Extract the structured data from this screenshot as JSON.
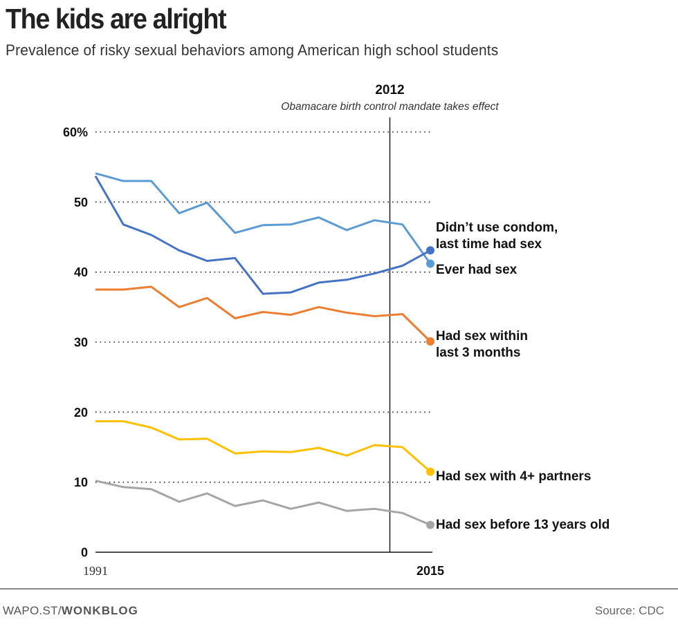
{
  "header": {
    "title": "The kids are alright",
    "subtitle": "Prevalence of risky sexual behaviors among American high school students"
  },
  "footer": {
    "credit_prefix": "WAPO.ST/",
    "credit_bold": "WONKBLOG",
    "source": "Source: CDC"
  },
  "chart_data": {
    "type": "line",
    "title": "The kids are alright",
    "subtitle": "Prevalence of risky sexual behaviors among American high school students",
    "xlabel": "",
    "ylabel": "",
    "x": [
      1991,
      1993,
      1995,
      1997,
      1999,
      2001,
      2003,
      2005,
      2007,
      2009,
      2011,
      2013,
      2015
    ],
    "x_tick_labels": [
      "1991",
      "2015"
    ],
    "xlim": [
      1991,
      2015
    ],
    "ylim": [
      0,
      60
    ],
    "y_ticks": [
      0,
      10,
      20,
      30,
      40,
      50,
      60
    ],
    "y_tick_labels": [
      "0",
      "10",
      "20",
      "30",
      "40",
      "50",
      "60%"
    ],
    "grid": "horizontal dotted",
    "legend": "direct labels at right end of lines",
    "annotation": {
      "x": 2012,
      "label": "2012",
      "text": "Obamacare birth control mandate takes effect"
    },
    "series": [
      {
        "name": "Ever had sex",
        "color": "#5b9bd5",
        "values": [
          54.1,
          53.0,
          53.0,
          48.4,
          49.9,
          45.6,
          46.7,
          46.8,
          47.8,
          46.0,
          47.4,
          46.8,
          41.2
        ]
      },
      {
        "name": "Didn’t use condom, last time had sex",
        "label_lines": [
          "Didn’t use condom,",
          "last time had sex"
        ],
        "color": "#4472c4",
        "values": [
          53.7,
          46.8,
          45.3,
          43.1,
          41.6,
          42.0,
          36.9,
          37.1,
          38.5,
          38.9,
          39.8,
          40.9,
          43.1
        ]
      },
      {
        "name": "Had sex within last 3 months",
        "label_lines": [
          "Had sex within",
          "last 3 months"
        ],
        "color": "#ed7d31",
        "values": [
          37.5,
          37.5,
          37.9,
          35.0,
          36.3,
          33.4,
          34.3,
          33.9,
          35.0,
          34.2,
          33.7,
          34.0,
          30.1
        ]
      },
      {
        "name": "Had sex with 4+ partners",
        "label_lines": [
          "Had sex with 4+ partners"
        ],
        "color": "#ffc000",
        "values": [
          18.7,
          18.7,
          17.8,
          16.1,
          16.2,
          14.1,
          14.4,
          14.3,
          14.9,
          13.8,
          15.3,
          15.0,
          11.5
        ]
      },
      {
        "name": "Had sex before 13 years old",
        "label_lines": [
          "Had sex before 13 years old"
        ],
        "color": "#a5a5a5",
        "values": [
          10.2,
          9.3,
          9.0,
          7.2,
          8.4,
          6.6,
          7.4,
          6.2,
          7.1,
          5.9,
          6.2,
          5.6,
          3.9
        ]
      }
    ]
  }
}
